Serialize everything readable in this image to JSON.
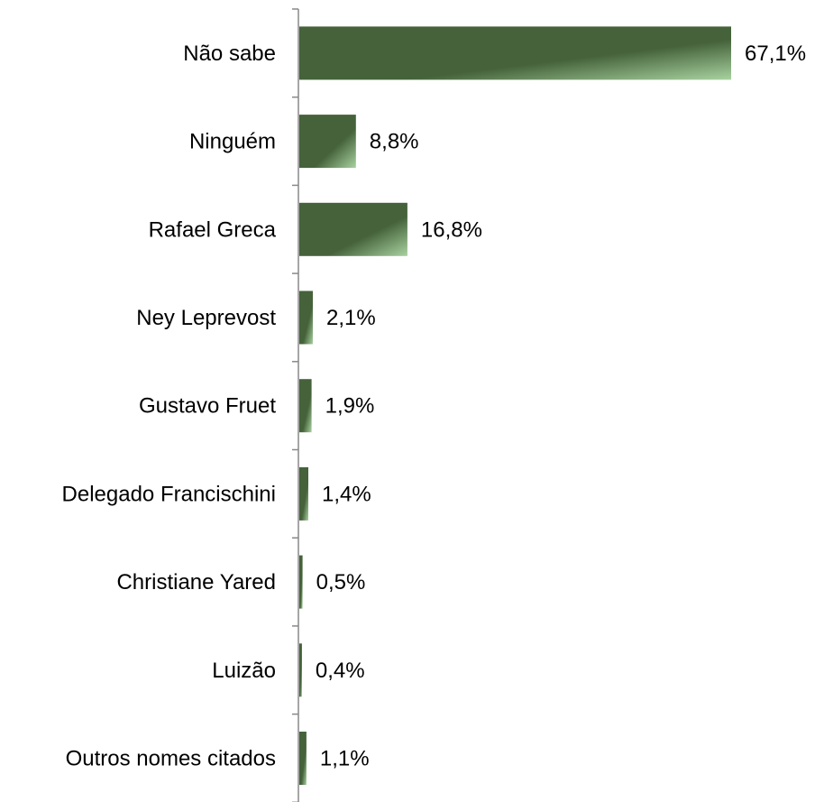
{
  "chart_data": {
    "type": "bar",
    "orientation": "horizontal",
    "categories": [
      "Não sabe",
      "Ninguém",
      "Rafael Greca",
      "Ney Leprevost",
      "Gustavo Fruet",
      "Delegado Francischini",
      "Christiane Yared",
      "Luizão",
      "Outros nomes citados"
    ],
    "values": [
      67.1,
      8.8,
      16.8,
      2.1,
      1.9,
      1.4,
      0.5,
      0.4,
      1.1
    ],
    "data_labels": [
      "67,1%",
      "8,8%",
      "16,8%",
      "2,1%",
      "1,9%",
      "1,4%",
      "0,5%",
      "0,4%",
      "1,1%"
    ],
    "title": "",
    "xlabel": "",
    "ylabel": "",
    "xlim": [
      0,
      67.1
    ],
    "grid": false,
    "legend": "none",
    "bar_color_dark": "#45623a",
    "bar_color_light": "#a8d2a0",
    "axis_color": "#888888"
  }
}
